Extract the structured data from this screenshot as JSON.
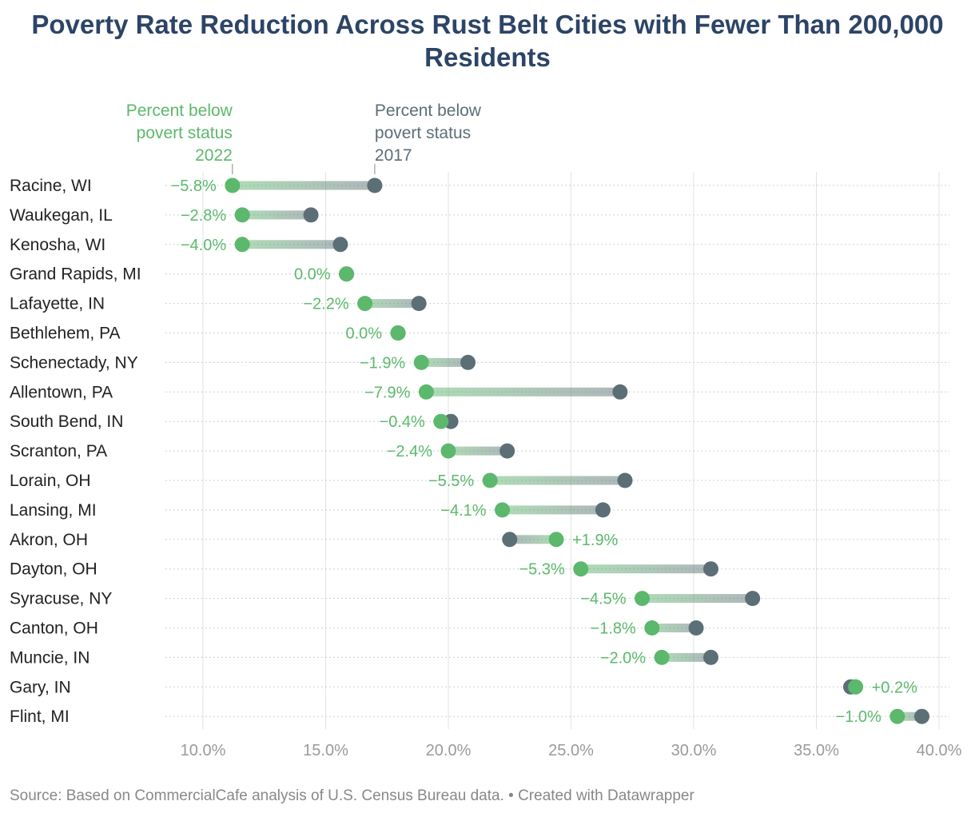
{
  "title": "Poverty Rate Reduction Across Rust Belt Cities with Fewer Than 200,000 Residents",
  "footer": "Source: Based on CommercialCafe analysis of U.S. Census Bureau data. • Created with Datawrapper",
  "colors": {
    "y2022": "#5cb86c",
    "y2017": "#5c6e76",
    "title": "#2c4466"
  },
  "chart_data": {
    "type": "dot-range",
    "title": "Poverty Rate Reduction Across Rust Belt Cities with Fewer Than 200,000 Residents",
    "legend": {
      "y2022": [
        "Percent below",
        "povert status",
        "2022"
      ],
      "y2017": [
        "Percent below",
        "povert status",
        "2017"
      ]
    },
    "xlim": [
      8.5,
      40.5
    ],
    "xticks": [
      10,
      15,
      20,
      25,
      30,
      35,
      40
    ],
    "xtick_labels": [
      "10.0%",
      "15.0%",
      "20.0%",
      "25.0%",
      "30.0%",
      "35.0%",
      "40.0%"
    ],
    "series": [
      {
        "name": "Percent below povert status 2017",
        "key": "v2017"
      },
      {
        "name": "Percent below povert status 2022",
        "key": "v2022"
      }
    ],
    "rows": [
      {
        "city": "Racine, WI",
        "v2017": 17.0,
        "v2022": 11.2,
        "change": "−5.8%"
      },
      {
        "city": "Waukegan, IL",
        "v2017": 14.4,
        "v2022": 11.6,
        "change": "−2.8%"
      },
      {
        "city": "Kenosha, WI",
        "v2017": 15.6,
        "v2022": 11.6,
        "change": "−4.0%"
      },
      {
        "city": "Grand Rapids, MI",
        "v2017": 15.85,
        "v2022": 15.85,
        "change": "0.0%"
      },
      {
        "city": "Lafayette, IN",
        "v2017": 18.8,
        "v2022": 16.6,
        "change": "−2.2%"
      },
      {
        "city": "Bethlehem, PA",
        "v2017": 17.95,
        "v2022": 17.95,
        "change": "0.0%"
      },
      {
        "city": "Schenectady, NY",
        "v2017": 20.8,
        "v2022": 18.9,
        "change": "−1.9%"
      },
      {
        "city": "Allentown, PA",
        "v2017": 27.0,
        "v2022": 19.1,
        "change": "−7.9%"
      },
      {
        "city": "South Bend, IN",
        "v2017": 20.1,
        "v2022": 19.7,
        "change": "−0.4%"
      },
      {
        "city": "Scranton, PA",
        "v2017": 22.4,
        "v2022": 20.0,
        "change": "−2.4%"
      },
      {
        "city": "Lorain, OH",
        "v2017": 27.2,
        "v2022": 21.7,
        "change": "−5.5%"
      },
      {
        "city": "Lansing, MI",
        "v2017": 26.3,
        "v2022": 22.2,
        "change": "−4.1%"
      },
      {
        "city": "Akron, OH",
        "v2017": 22.5,
        "v2022": 24.4,
        "change": "+1.9%"
      },
      {
        "city": "Dayton, OH",
        "v2017": 30.7,
        "v2022": 25.4,
        "change": "−5.3%"
      },
      {
        "city": "Syracuse, NY",
        "v2017": 32.4,
        "v2022": 27.9,
        "change": "−4.5%"
      },
      {
        "city": "Canton, OH",
        "v2017": 30.1,
        "v2022": 28.3,
        "change": "−1.8%"
      },
      {
        "city": "Muncie, IN",
        "v2017": 30.7,
        "v2022": 28.7,
        "change": "−2.0%"
      },
      {
        "city": "Gary, IN",
        "v2017": 36.4,
        "v2022": 36.6,
        "change": "+0.2%"
      },
      {
        "city": "Flint, MI",
        "v2017": 39.3,
        "v2022": 38.3,
        "change": "−1.0%"
      }
    ]
  }
}
